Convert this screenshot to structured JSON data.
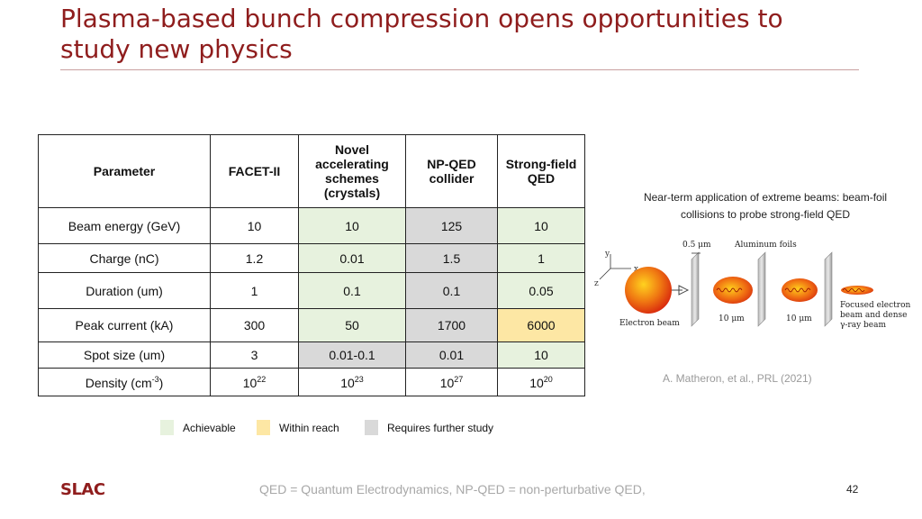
{
  "title": "Plasma-based bunch compression opens opportunities to study new physics",
  "table": {
    "headers": [
      "Parameter",
      "FACET-II",
      "Novel accelerating schemes (crystals)",
      "NP-QED collider",
      "Strong-field QED"
    ],
    "rows": [
      {
        "label": "Beam energy (GeV)",
        "facet": "10",
        "novel": "10",
        "npqed": "125",
        "sfqed": "10"
      },
      {
        "label": "Charge (nC)",
        "facet": "1.2",
        "novel": "0.01",
        "npqed": "1.5",
        "sfqed": "1"
      },
      {
        "label": "Duration (um)",
        "facet": "1",
        "novel": "0.1",
        "npqed": "0.1",
        "sfqed": "0.05"
      },
      {
        "label": "Peak current (kA)",
        "facet": "300",
        "novel": "50",
        "npqed": "1700",
        "sfqed": "6000"
      },
      {
        "label": "Spot size (um)",
        "facet": "3",
        "novel": "0.01-0.1",
        "npqed": "0.01",
        "sfqed": "10"
      }
    ],
    "density": {
      "label_main": "Density (cm",
      "label_exp": "-3",
      "label_close": ")",
      "base": "10",
      "facet_exp": "22",
      "novel_exp": "23",
      "npqed_exp": "27",
      "sfqed_exp": "20"
    }
  },
  "legend": {
    "achievable": "Achievable",
    "within_reach": "Within reach",
    "requires_study": "Requires further study",
    "colors": {
      "achievable": "#e7f2de",
      "within_reach": "#fde7a4",
      "requires_study": "#d9d9d9"
    }
  },
  "figure": {
    "caption": "Near-term application of extreme beams: beam-foil collisions to probe strong-field QED",
    "thickness_label": "0.5 μm",
    "foils_label": "Aluminum foils",
    "electron_beam_label": "Electron beam",
    "gap1_label": "10 μm",
    "gap2_label": "10 μm",
    "focused_label_1": "Focused electron",
    "focused_label_2": "beam and dense",
    "focused_label_3": "γ-ray beam",
    "axis_y": "y",
    "axis_x": "x",
    "axis_z": "z",
    "citation": "A. Matheron, et al., PRL (2021)"
  },
  "footnote": "QED = Quantum Electrodynamics, NP-QED = non-perturbative QED,",
  "page_number": "42",
  "logo_text": "SLAC"
}
